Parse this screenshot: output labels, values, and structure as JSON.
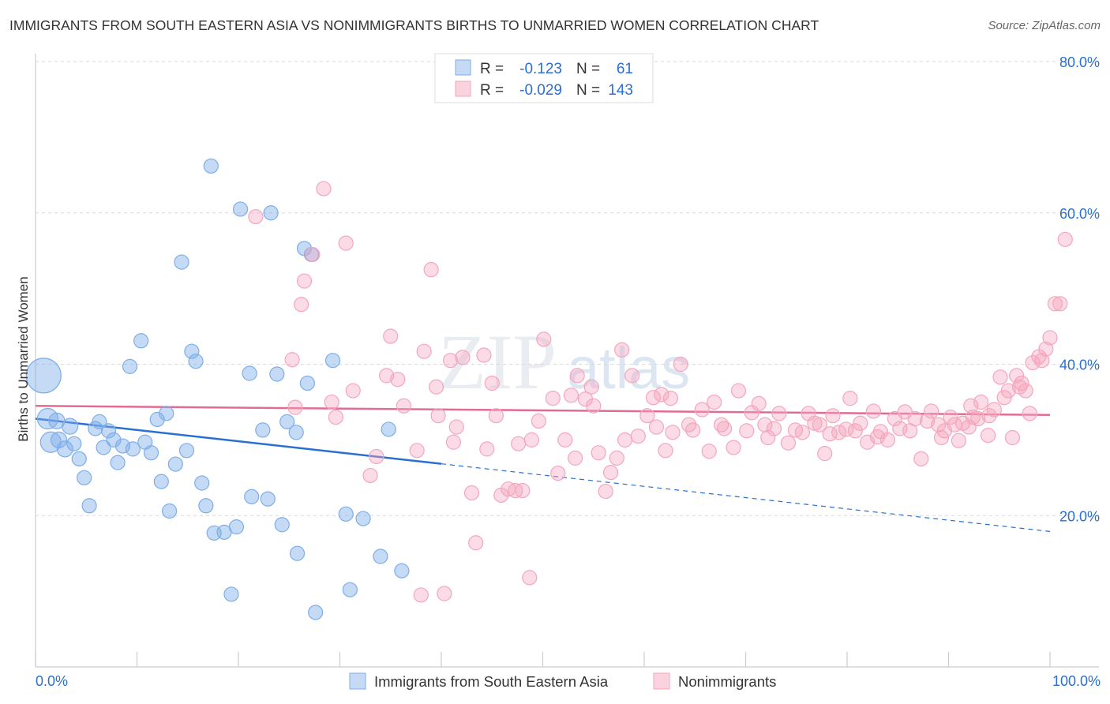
{
  "title": "IMMIGRANTS FROM SOUTH EASTERN ASIA VS NONIMMIGRANTS BIRTHS TO UNMARRIED WOMEN CORRELATION CHART",
  "source": "Source: ZipAtlas.com",
  "watermark": {
    "zip": "ZIP",
    "atlas": "atlas"
  },
  "chart_data": {
    "type": "scatter",
    "xlabel": "",
    "ylabel": "Births to Unmarried Women",
    "xlim": [
      0,
      100
    ],
    "ylim": [
      0,
      80
    ],
    "x_tick_labels": {
      "left": "0.0%",
      "right": "100.0%"
    },
    "y_ticks": [
      20,
      40,
      60,
      80
    ],
    "y_tick_labels": [
      "20.0%",
      "40.0%",
      "60.0%",
      "80.0%"
    ],
    "legend_position": "top-center",
    "legend": [
      {
        "r_label": "R =",
        "r_value": "-0.123",
        "n_label": "N =",
        "n_value": "61"
      },
      {
        "r_label": "R =",
        "r_value": "-0.029",
        "n_label": "N =",
        "n_value": "143"
      }
    ],
    "series": [
      {
        "name": "Immigrants from South Eastern Asia",
        "color": "#7eaee8",
        "line_color": "#2a6fd1",
        "trend": {
          "x0": 0,
          "y0": 32.8,
          "x1": 100,
          "y1": 17.9,
          "solid_until_x": 40
        },
        "points": [
          [
            0.8,
            38.5,
            22
          ],
          [
            1.2,
            32.8,
            13
          ],
          [
            1.5,
            29.7,
            13
          ],
          [
            2.1,
            32.5,
            10
          ],
          [
            2.3,
            30.0,
            10
          ],
          [
            2.9,
            28.8,
            10
          ],
          [
            3.4,
            31.8,
            10
          ],
          [
            3.8,
            29.5,
            9
          ],
          [
            4.3,
            27.5,
            9
          ],
          [
            4.8,
            25.0,
            9
          ],
          [
            5.3,
            21.3,
            9
          ],
          [
            5.9,
            31.5,
            9
          ],
          [
            6.3,
            32.4,
            9
          ],
          [
            6.7,
            29.0,
            9
          ],
          [
            7.2,
            31.2,
            9
          ],
          [
            7.7,
            30.0,
            9
          ],
          [
            8.1,
            27.0,
            9
          ],
          [
            8.6,
            29.2,
            9
          ],
          [
            9.3,
            39.7,
            9
          ],
          [
            9.6,
            28.8,
            9
          ],
          [
            10.4,
            43.1,
            9
          ],
          [
            10.8,
            29.7,
            9
          ],
          [
            11.4,
            28.3,
            9
          ],
          [
            12.0,
            32.7,
            9
          ],
          [
            12.4,
            24.5,
            9
          ],
          [
            12.9,
            33.5,
            9
          ],
          [
            13.2,
            20.6,
            9
          ],
          [
            13.8,
            26.8,
            9
          ],
          [
            14.4,
            53.5,
            9
          ],
          [
            14.9,
            28.6,
            9
          ],
          [
            15.4,
            41.7,
            9
          ],
          [
            15.8,
            40.4,
            9
          ],
          [
            16.4,
            24.3,
            9
          ],
          [
            16.8,
            21.3,
            9
          ],
          [
            17.3,
            66.2,
            9
          ],
          [
            17.6,
            17.7,
            9
          ],
          [
            18.6,
            17.8,
            9
          ],
          [
            19.3,
            9.6,
            9
          ],
          [
            19.8,
            18.5,
            9
          ],
          [
            20.2,
            60.5,
            9
          ],
          [
            21.1,
            38.8,
            9
          ],
          [
            21.3,
            22.5,
            9
          ],
          [
            22.4,
            31.3,
            9
          ],
          [
            22.9,
            22.2,
            9
          ],
          [
            23.2,
            60.0,
            9
          ],
          [
            23.8,
            38.7,
            9
          ],
          [
            24.3,
            18.8,
            9
          ],
          [
            24.8,
            32.4,
            9
          ],
          [
            25.7,
            31.0,
            9
          ],
          [
            25.8,
            15.0,
            9
          ],
          [
            26.5,
            55.3,
            9
          ],
          [
            26.8,
            37.5,
            9
          ],
          [
            27.2,
            54.5,
            9
          ],
          [
            27.6,
            7.2,
            9
          ],
          [
            29.3,
            40.5,
            9
          ],
          [
            30.6,
            20.2,
            9
          ],
          [
            31.0,
            10.2,
            9
          ],
          [
            32.3,
            19.6,
            9
          ],
          [
            34.0,
            14.6,
            9
          ],
          [
            34.8,
            31.4,
            9
          ],
          [
            36.1,
            12.7,
            9
          ]
        ]
      },
      {
        "name": "Nonimmigrants",
        "color": "#f4a6bd",
        "line_color": "#e16c93",
        "trend": {
          "x0": 0,
          "y0": 34.5,
          "x1": 100,
          "y1": 33.3,
          "solid_until_x": 100
        },
        "points": [
          [
            21.7,
            59.5,
            9
          ],
          [
            25.3,
            40.6,
            9
          ],
          [
            25.6,
            34.3,
            9
          ],
          [
            26.2,
            47.9,
            9
          ],
          [
            26.5,
            51.0,
            9
          ],
          [
            27.3,
            54.5,
            9
          ],
          [
            28.4,
            63.2,
            9
          ],
          [
            29.2,
            35.0,
            9
          ],
          [
            29.6,
            33.0,
            9
          ],
          [
            30.6,
            56.0,
            9
          ],
          [
            31.3,
            36.5,
            9
          ],
          [
            33.0,
            25.3,
            9
          ],
          [
            33.6,
            27.8,
            9
          ],
          [
            34.6,
            38.5,
            9
          ],
          [
            35.0,
            43.7,
            9
          ],
          [
            35.7,
            38.0,
            9
          ],
          [
            36.3,
            34.5,
            9
          ],
          [
            37.6,
            28.6,
            9
          ],
          [
            38.0,
            9.5,
            9
          ],
          [
            38.3,
            41.7,
            9
          ],
          [
            39.0,
            52.5,
            9
          ],
          [
            39.5,
            37.0,
            9
          ],
          [
            39.7,
            33.2,
            9
          ],
          [
            40.3,
            9.7,
            9
          ],
          [
            40.9,
            40.5,
            9
          ],
          [
            41.2,
            29.7,
            9
          ],
          [
            41.5,
            31.7,
            9
          ],
          [
            42.1,
            40.9,
            9
          ],
          [
            43.0,
            23.0,
            9
          ],
          [
            43.4,
            16.4,
            9
          ],
          [
            44.2,
            41.2,
            9
          ],
          [
            44.5,
            28.8,
            9
          ],
          [
            45.0,
            37.5,
            9
          ],
          [
            45.4,
            33.2,
            9
          ],
          [
            45.9,
            22.7,
            9
          ],
          [
            46.6,
            23.5,
            9
          ],
          [
            47.3,
            23.3,
            9
          ],
          [
            47.6,
            29.5,
            9
          ],
          [
            48.0,
            23.3,
            9
          ],
          [
            48.7,
            11.8,
            9
          ],
          [
            48.9,
            30.0,
            9
          ],
          [
            49.6,
            32.5,
            9
          ],
          [
            50.1,
            43.3,
            9
          ],
          [
            51.0,
            35.5,
            9
          ],
          [
            51.5,
            25.6,
            9
          ],
          [
            52.2,
            30.0,
            9
          ],
          [
            52.8,
            35.9,
            9
          ],
          [
            53.2,
            27.6,
            9
          ],
          [
            53.4,
            38.5,
            9
          ],
          [
            54.2,
            35.4,
            9
          ],
          [
            54.8,
            37.0,
            9
          ],
          [
            55.0,
            34.5,
            9
          ],
          [
            55.5,
            28.3,
            9
          ],
          [
            56.2,
            23.2,
            9
          ],
          [
            56.7,
            25.7,
            9
          ],
          [
            57.3,
            27.6,
            9
          ],
          [
            57.8,
            41.9,
            9
          ],
          [
            58.1,
            30.0,
            9
          ],
          [
            58.8,
            38.5,
            9
          ],
          [
            59.4,
            30.5,
            9
          ],
          [
            60.3,
            33.2,
            9
          ],
          [
            60.9,
            35.6,
            9
          ],
          [
            61.2,
            31.7,
            9
          ],
          [
            61.7,
            36.0,
            9
          ],
          [
            62.1,
            28.6,
            9
          ],
          [
            62.6,
            35.5,
            9
          ],
          [
            62.8,
            31.0,
            9
          ],
          [
            63.6,
            40.0,
            9
          ],
          [
            64.4,
            32.0,
            9
          ],
          [
            64.8,
            31.3,
            9
          ],
          [
            65.7,
            34.0,
            9
          ],
          [
            66.4,
            28.5,
            9
          ],
          [
            66.9,
            35.0,
            9
          ],
          [
            67.6,
            32.0,
            9
          ],
          [
            67.9,
            31.5,
            9
          ],
          [
            68.8,
            29.0,
            9
          ],
          [
            69.3,
            36.5,
            9
          ],
          [
            70.1,
            31.2,
            9
          ],
          [
            70.6,
            33.6,
            9
          ],
          [
            71.3,
            34.8,
            9
          ],
          [
            71.9,
            32.0,
            9
          ],
          [
            72.2,
            30.3,
            9
          ],
          [
            72.8,
            31.5,
            9
          ],
          [
            73.3,
            33.5,
            9
          ],
          [
            74.2,
            29.6,
            9
          ],
          [
            74.9,
            31.3,
            9
          ],
          [
            75.6,
            31.0,
            9
          ],
          [
            76.2,
            33.5,
            9
          ],
          [
            76.8,
            32.2,
            9
          ],
          [
            77.3,
            32.0,
            9
          ],
          [
            77.8,
            28.2,
            9
          ],
          [
            78.3,
            30.8,
            9
          ],
          [
            78.6,
            33.2,
            9
          ],
          [
            79.2,
            31.0,
            9
          ],
          [
            79.9,
            31.4,
            9
          ],
          [
            80.3,
            35.5,
            9
          ],
          [
            80.8,
            31.2,
            9
          ],
          [
            81.3,
            32.2,
            9
          ],
          [
            82.0,
            29.7,
            9
          ],
          [
            82.6,
            33.8,
            9
          ],
          [
            83.0,
            30.4,
            9
          ],
          [
            83.3,
            31.1,
            9
          ],
          [
            84.0,
            30.0,
            9
          ],
          [
            84.7,
            32.8,
            9
          ],
          [
            85.2,
            31.5,
            9
          ],
          [
            85.7,
            33.7,
            9
          ],
          [
            86.2,
            31.2,
            9
          ],
          [
            86.7,
            32.8,
            9
          ],
          [
            87.3,
            27.5,
            9
          ],
          [
            87.9,
            32.5,
            9
          ],
          [
            88.3,
            33.8,
            9
          ],
          [
            89.0,
            32.0,
            9
          ],
          [
            89.6,
            31.2,
            9
          ],
          [
            90.2,
            33.0,
            9
          ],
          [
            90.6,
            32.0,
            9
          ],
          [
            91.0,
            29.9,
            9
          ],
          [
            91.4,
            32.2,
            9
          ],
          [
            92.2,
            34.5,
            9
          ],
          [
            92.4,
            33.0,
            9
          ],
          [
            92.9,
            32.8,
            9
          ],
          [
            93.2,
            35.0,
            9
          ],
          [
            93.9,
            30.6,
            9
          ],
          [
            94.5,
            34.0,
            9
          ],
          [
            95.1,
            38.3,
            9
          ],
          [
            95.5,
            35.6,
            9
          ],
          [
            95.9,
            36.5,
            9
          ],
          [
            96.3,
            30.3,
            9
          ],
          [
            96.7,
            38.5,
            9
          ],
          [
            97.2,
            37.5,
            9
          ],
          [
            97.6,
            36.5,
            9
          ],
          [
            98.3,
            40.2,
            9
          ],
          [
            98.9,
            41.0,
            9
          ],
          [
            99.2,
            40.5,
            9
          ],
          [
            99.6,
            42.0,
            9
          ],
          [
            100.0,
            43.5,
            9
          ],
          [
            100.5,
            48.0,
            9
          ],
          [
            101.0,
            48.0,
            9
          ],
          [
            101.5,
            56.5,
            9
          ],
          [
            98.0,
            33.5,
            9
          ],
          [
            97.0,
            37.0,
            9
          ],
          [
            94.0,
            33.2,
            9
          ],
          [
            92.0,
            31.7,
            9
          ],
          [
            89.3,
            30.3,
            9
          ]
        ]
      }
    ]
  }
}
